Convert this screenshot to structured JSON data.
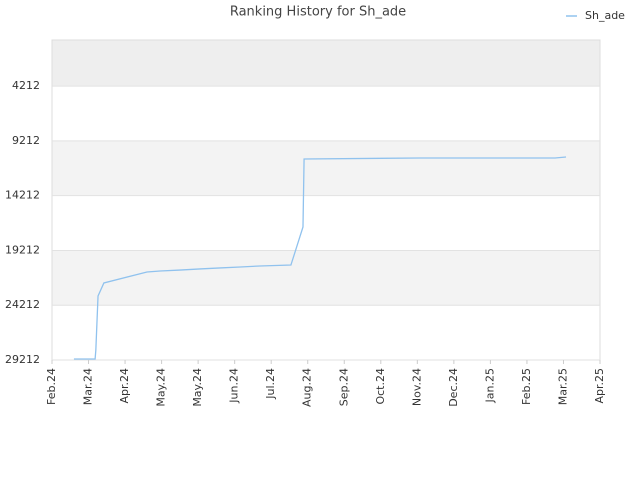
{
  "chart_data": {
    "type": "line",
    "title": "Ranking History for Sh_ade",
    "xlim": [
      0,
      15
    ],
    "xticks": [
      {
        "value": 0,
        "label": "Feb.24"
      },
      {
        "value": 1,
        "label": "Mar.24"
      },
      {
        "value": 2,
        "label": "Apr.24"
      },
      {
        "value": 3,
        "label": "May.24"
      },
      {
        "value": 4,
        "label": "May.24"
      },
      {
        "value": 5,
        "label": "Jun.24"
      },
      {
        "value": 6,
        "label": "Jul.24"
      },
      {
        "value": 7,
        "label": "Aug.24"
      },
      {
        "value": 8,
        "label": "Sep.24"
      },
      {
        "value": 9,
        "label": "Oct.24"
      },
      {
        "value": 10,
        "label": "Nov.24"
      },
      {
        "value": 11,
        "label": "Dec.24"
      },
      {
        "value": 12,
        "label": "Jan.25"
      },
      {
        "value": 13,
        "label": "Feb.25"
      },
      {
        "value": 14,
        "label": "Mar.25"
      },
      {
        "value": 15,
        "label": "Apr.25"
      }
    ],
    "ylim": [
      29212,
      0
    ],
    "yticks": [
      4212,
      9212,
      14212,
      19212,
      24212,
      29212
    ],
    "x": [
      0.6,
      1.18,
      1.2,
      1.26,
      1.42,
      2.6,
      2.96,
      3.5,
      4.05,
      4.6,
      5.15,
      5.69,
      6.54,
      6.87,
      6.9,
      10.07,
      13.77,
      14.07
    ],
    "series": [
      {
        "name": "Sh_ade",
        "color": "#90c2ee",
        "values": [
          29120,
          29120,
          28300,
          23370,
          22180,
          21180,
          21090,
          21000,
          20900,
          20810,
          20720,
          20630,
          20540,
          17070,
          10860,
          10770,
          10770,
          10680
        ]
      }
    ],
    "legend": "top-right"
  }
}
